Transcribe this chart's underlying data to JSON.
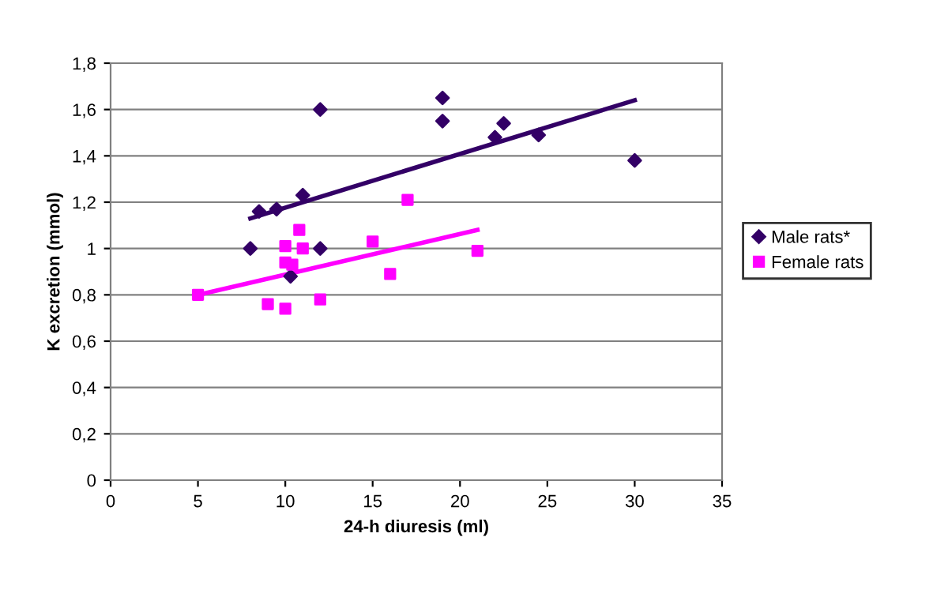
{
  "chart_data": {
    "type": "scatter",
    "xlabel": "24-h diuresis (ml)",
    "ylabel": "K excretion (mmol)",
    "xlim": [
      0,
      35
    ],
    "xticks": [
      0,
      5,
      10,
      15,
      20,
      25,
      30,
      35
    ],
    "ylim": [
      0,
      1.8
    ],
    "yticks": [
      {
        "value": 0,
        "label": "0"
      },
      {
        "value": 0.2,
        "label": "0,2"
      },
      {
        "value": 0.4,
        "label": "0,4"
      },
      {
        "value": 0.6,
        "label": "0,6"
      },
      {
        "value": 0.8,
        "label": "0,8"
      },
      {
        "value": 1,
        "label": "1"
      },
      {
        "value": 1.2,
        "label": "1,2"
      },
      {
        "value": 1.4,
        "label": "1,4"
      },
      {
        "value": 1.6,
        "label": "1,6"
      },
      {
        "value": 1.8,
        "label": "1,8"
      }
    ],
    "grid": "y",
    "legend": "right",
    "series": [
      {
        "name": "Male rats*",
        "color": "#330066",
        "marker": "diamond",
        "x": [
          8,
          8.5,
          9.5,
          11,
          12,
          12,
          10.3,
          19,
          19,
          22,
          22.5,
          24.5,
          30
        ],
        "values": [
          1.0,
          1.16,
          1.17,
          1.23,
          1.6,
          1.0,
          0.88,
          1.65,
          1.55,
          1.48,
          1.54,
          1.49,
          1.38
        ]
      },
      {
        "name": "Female rats",
        "color": "#ff00ff",
        "marker": "square",
        "x": [
          5,
          9,
          10,
          10,
          10.4,
          10,
          11,
          10.8,
          12,
          15,
          16,
          17,
          21
        ],
        "values": [
          0.8,
          0.76,
          0.74,
          0.94,
          0.93,
          1.01,
          1.0,
          1.08,
          0.78,
          1.03,
          0.89,
          1.21,
          0.99
        ]
      },
      {
        "type": "line",
        "color": "#330066",
        "marker": "none",
        "x": [
          8,
          30
        ],
        "values": [
          1.13,
          1.64
        ]
      },
      {
        "type": "line",
        "color": "#ff00ff",
        "marker": "none",
        "x": [
          5,
          21
        ],
        "values": [
          0.8,
          1.08
        ]
      }
    ]
  }
}
